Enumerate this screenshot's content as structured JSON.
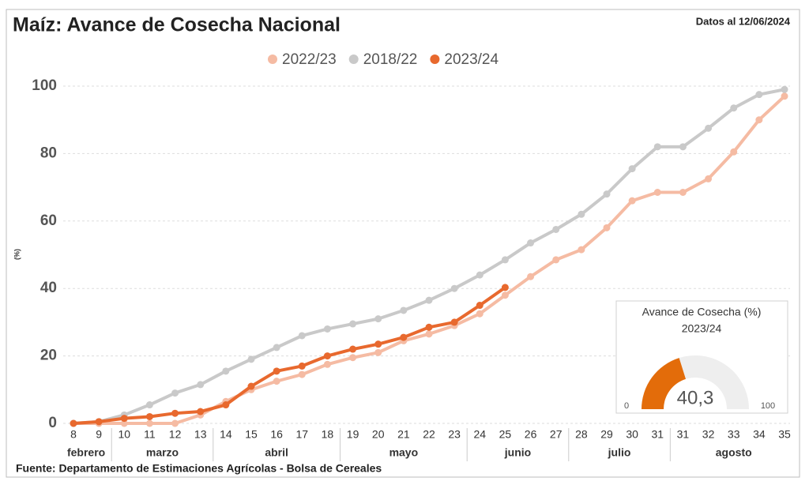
{
  "chart_data": {
    "type": "line",
    "title": "Maíz: Avance de Cosecha Nacional",
    "subtitle": "Datos al 12/06/2024",
    "y_label": "(%)",
    "source": "Fuente: Departamento de Estimaciones Agrícolas - Bolsa de Cereales",
    "categories": [
      "8",
      "9",
      "10",
      "11",
      "12",
      "13",
      "14",
      "15",
      "16",
      "17",
      "18",
      "19",
      "20",
      "21",
      "22",
      "23",
      "24",
      "25",
      "26",
      "27",
      "28",
      "29",
      "30",
      "31",
      "31",
      "32",
      "33",
      "34",
      "35"
    ],
    "category_groups": [
      "febrero",
      "febrero",
      "marzo",
      "marzo",
      "marzo",
      "marzo",
      "abril",
      "abril",
      "abril",
      "abril",
      "abril",
      "mayo",
      "mayo",
      "mayo",
      "mayo",
      "mayo",
      "junio",
      "junio",
      "junio",
      "junio",
      "julio",
      "julio",
      "julio",
      "julio",
      "agosto",
      "agosto",
      "agosto",
      "agosto",
      "agosto"
    ],
    "ylim": [
      0,
      100
    ],
    "yticks": [
      0,
      20,
      40,
      60,
      80,
      100
    ],
    "grid": true,
    "series": [
      {
        "name": "2022/23",
        "color": "#f5bba3",
        "values": [
          0,
          0,
          0,
          0,
          0,
          2.5,
          6.5,
          10,
          12.5,
          14.5,
          17.5,
          19.5,
          21,
          24.5,
          26.5,
          29,
          32.5,
          38,
          43.5,
          48.5,
          51.5,
          58,
          66,
          68.5,
          68.5,
          72.5,
          80.5,
          90,
          97
        ]
      },
      {
        "name": "2018/22",
        "color": "#c9c9c9",
        "values": [
          0,
          0.5,
          2.5,
          5.5,
          9,
          11.5,
          15.5,
          19,
          22.5,
          26,
          28,
          29.5,
          31,
          33.5,
          36.5,
          40,
          44,
          48.5,
          53.5,
          57.5,
          62,
          68,
          75.5,
          82,
          82,
          87.5,
          93.5,
          97.5,
          99
        ]
      },
      {
        "name": "2023/24",
        "color": "#e8692e",
        "values": [
          0,
          0.5,
          1.5,
          2,
          3,
          3.5,
          5.5,
          11,
          15.5,
          17,
          20,
          22,
          23.5,
          25.5,
          28.5,
          30,
          35,
          40.3,
          null,
          null,
          null,
          null,
          null,
          null,
          null,
          null,
          null,
          null,
          null
        ]
      }
    ]
  },
  "gauge": {
    "title": "Avance de Cosecha (%)",
    "subtitle": "2023/24",
    "value": 40.3,
    "value_label": "40,3",
    "min": 0,
    "max": 100,
    "color": "#e36c0a"
  }
}
